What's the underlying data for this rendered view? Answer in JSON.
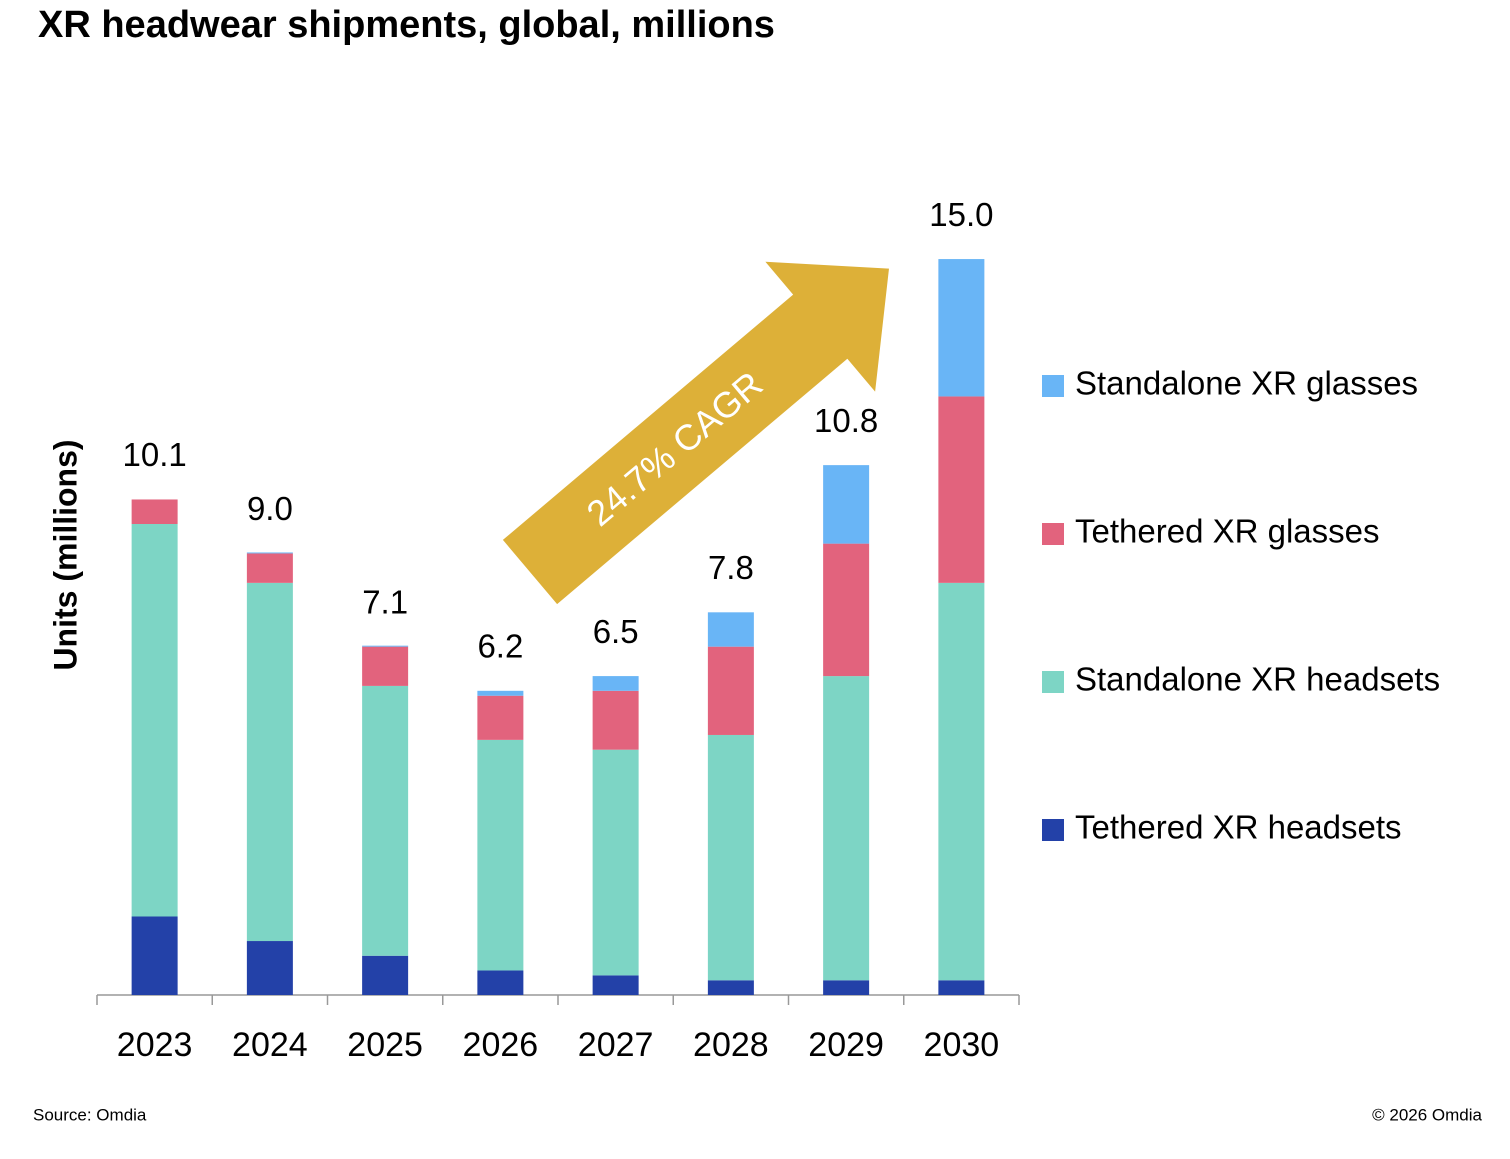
{
  "chart_data": {
    "type": "stacked_bar",
    "title": "XR headwear shipments, global, millions",
    "y_label": "Units (millions)",
    "categories": [
      "2023",
      "2024",
      "2025",
      "2026",
      "2027",
      "2028",
      "2029",
      "2030"
    ],
    "series": [
      {
        "name": "Tethered XR headsets",
        "color": "#2341a8",
        "values": [
          1.6,
          1.1,
          0.8,
          0.5,
          0.4,
          0.3,
          0.3,
          0.3
        ]
      },
      {
        "name": "Standalone XR headsets",
        "color": "#7dd5c5",
        "values": [
          8.0,
          7.3,
          5.5,
          4.7,
          4.6,
          5.0,
          6.2,
          8.1
        ]
      },
      {
        "name": "Tethered XR glasses",
        "color": "#e2637d",
        "values": [
          0.5,
          0.6,
          0.8,
          0.9,
          1.2,
          1.8,
          2.7,
          3.8
        ]
      },
      {
        "name": "Standalone XR glasses",
        "color": "#69b5f6",
        "values": [
          0,
          0.02,
          0.02,
          0.1,
          0.3,
          0.7,
          1.6,
          2.8
        ]
      }
    ],
    "totals": {
      "values": [
        10.1,
        9.0,
        7.1,
        6.2,
        6.5,
        7.8,
        10.8,
        15.0
      ],
      "value_labels": [
        "10.1",
        "9.0",
        "7.1",
        "6.2",
        "6.5",
        "7.8",
        "10.8",
        "15.0"
      ]
    },
    "ylim": [
      0,
      16
    ],
    "annotation": "24.7% CAGR",
    "source": "Source: Omdia",
    "copyright": "© 2026 Omdia"
  }
}
